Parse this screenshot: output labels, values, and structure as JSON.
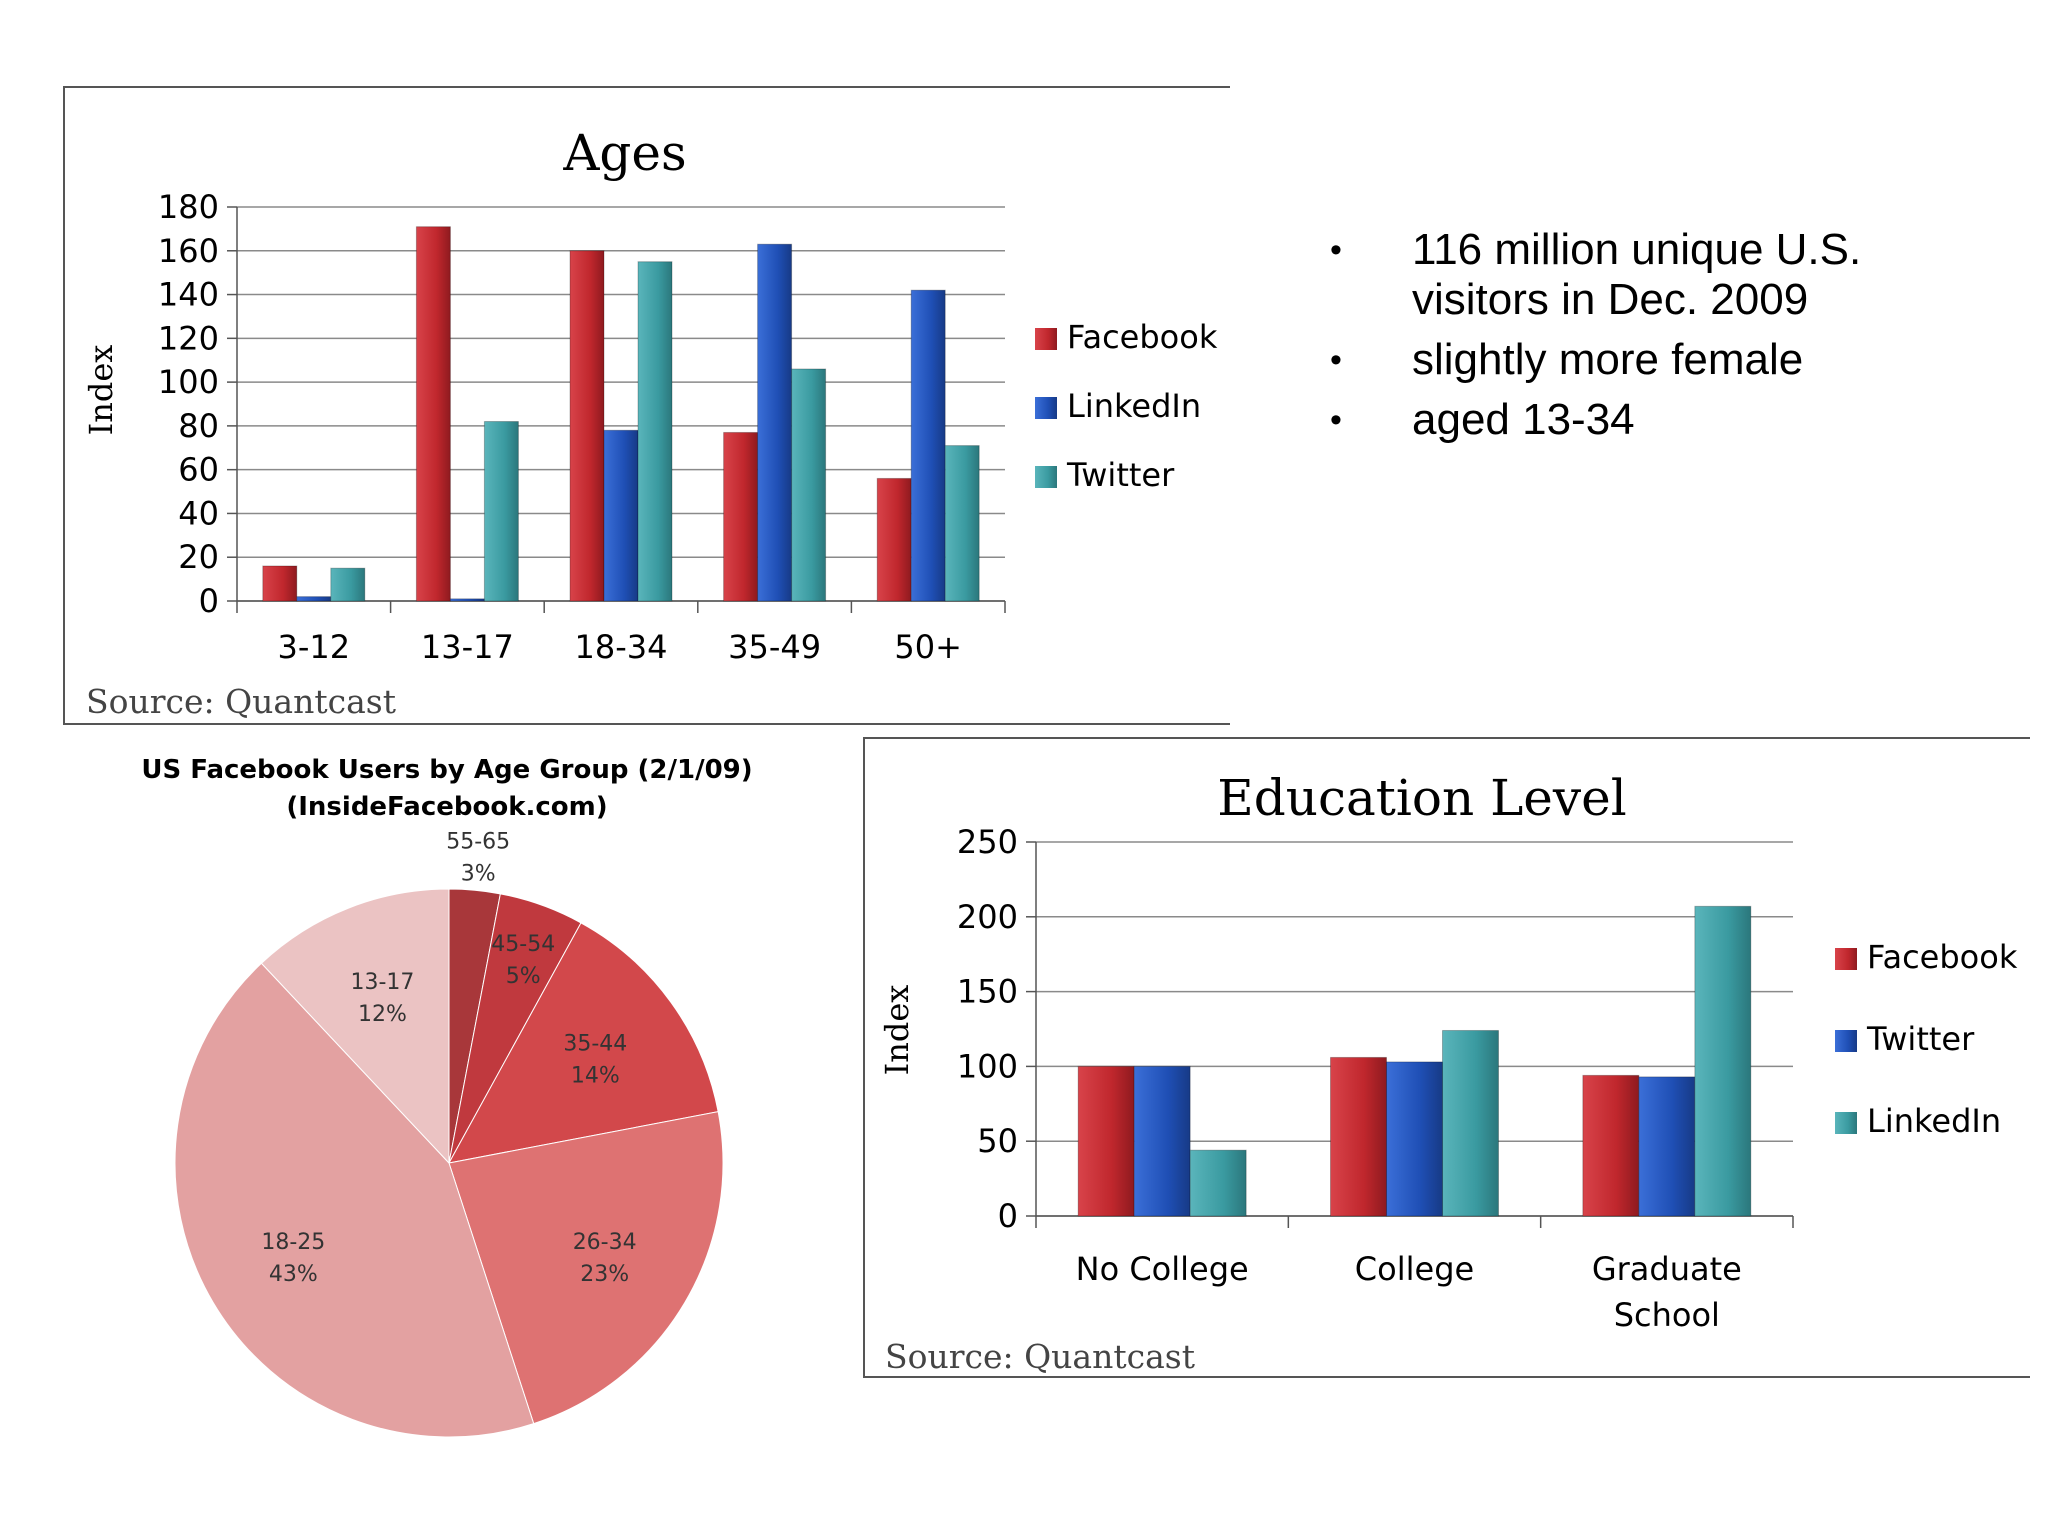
{
  "bullets": [
    "116 million unique U.S. visitors in Dec. 2009",
    "slightly more female",
    "aged 13-34"
  ],
  "bullet_glyph": "•",
  "chart_data": [
    {
      "type": "bar",
      "title": "Ages",
      "ylabel": "Index",
      "xlabel": "",
      "source": "Source: Quantcast",
      "categories": [
        "3-12",
        "13-17",
        "18-34",
        "35-49",
        "50+"
      ],
      "series": [
        {
          "name": "Facebook",
          "values": [
            16,
            171,
            160,
            77,
            56
          ],
          "color": "#c0272d"
        },
        {
          "name": "LinkedIn",
          "values": [
            2,
            1,
            78,
            163,
            142
          ],
          "color": "#1f4fb5"
        },
        {
          "name": "Twitter",
          "values": [
            15,
            82,
            155,
            106,
            71
          ],
          "color": "#3a9aa0"
        }
      ],
      "ylim": [
        0,
        180
      ],
      "yticks": [
        0,
        20,
        40,
        60,
        80,
        100,
        120,
        140,
        160,
        180
      ],
      "grid": true,
      "legend_position": "right"
    },
    {
      "type": "pie",
      "title": "US Facebook Users by Age Group (2/1/09)",
      "subtitle": "(InsideFacebook.com)",
      "slices": [
        {
          "label": "55-65",
          "value": 3,
          "pct_label": "3%",
          "color": "#a8373a"
        },
        {
          "label": "45-54",
          "value": 5,
          "pct_label": "5%",
          "color": "#c0393e"
        },
        {
          "label": "35-44",
          "value": 14,
          "pct_label": "14%",
          "color": "#d2484b"
        },
        {
          "label": "26-34",
          "value": 23,
          "pct_label": "23%",
          "color": "#de7272"
        },
        {
          "label": "18-25",
          "value": 43,
          "pct_label": "43%",
          "color": "#e3a1a1"
        },
        {
          "label": "13-17",
          "value": 12,
          "pct_label": "12%",
          "color": "#ebc3c3"
        }
      ]
    },
    {
      "type": "bar",
      "title": "Education Level",
      "ylabel": "Index",
      "xlabel": "",
      "source": "Source: Quantcast",
      "categories": [
        "No College",
        "College",
        "Graduate School"
      ],
      "series": [
        {
          "name": "Facebook",
          "values": [
            100,
            106,
            94
          ],
          "color": "#c0272d"
        },
        {
          "name": "Twitter",
          "values": [
            100,
            103,
            93
          ],
          "color": "#1f4fb5"
        },
        {
          "name": "LinkedIn",
          "values": [
            44,
            124,
            207
          ],
          "color": "#3a9aa0"
        }
      ],
      "ylim": [
        0,
        250
      ],
      "yticks": [
        0,
        50,
        100,
        150,
        200,
        250
      ],
      "grid": true,
      "legend_position": "right"
    }
  ]
}
